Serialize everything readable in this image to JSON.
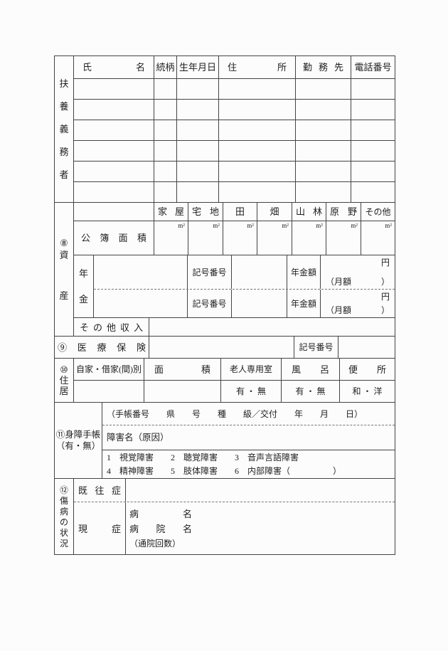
{
  "form": {
    "dependents": {
      "row_label": "扶養義務者",
      "col_name": "氏名",
      "col_relation": "続柄",
      "col_birthdate": "生年月日",
      "col_address": "住所",
      "col_workplace": "勤務先",
      "col_phone": "電話番号"
    },
    "assets": {
      "section_label": "⑧資産",
      "land_types": [
        "家屋",
        "宅地",
        "田",
        "畑",
        "山林",
        "原野",
        "その他"
      ],
      "area_unit": "m²",
      "registered_area_label": "公簿面積",
      "pension_label": "年金",
      "pension_symbol_label": "記号番号",
      "pension_amount_label": "年金額",
      "pension_monthly_open": "（月額",
      "pension_yen": "円",
      "pension_monthly_close": "）",
      "other_income_label": "その他収入"
    },
    "medical": {
      "label": "⑨医療保険",
      "symbol_label": "記号番号"
    },
    "housing": {
      "section_label": "⑩住居",
      "col_ownership": "自家・借家(間)別",
      "col_area": "面積",
      "col_elder_room": "老人専用室",
      "col_bath": "風呂",
      "col_toilet": "便所",
      "val_elder_room": "有 ・ 無",
      "val_bath": "有 ・ 無",
      "val_toilet": "和 ・ 洋"
    },
    "disability": {
      "label_line1": "⑪身障手帳",
      "label_line2": "（有・無）",
      "notebook_line": "（手帳番号　　県　　号　　種　　級／交付　　年　　月　　日）",
      "cause_label": "障害名（原因）",
      "options_line1": "1　視覚障害　　2　聴覚障害　　3　音声言語障害",
      "options_line2": "4　精神障害　　5　肢体障害　　6　内部障害（　　　　　）"
    },
    "illness": {
      "section_label": "⑫傷病の状況",
      "past_label": "既往症",
      "current_label": "現症",
      "disease_label": "病名",
      "hospital_label": "病院名",
      "visits_label": "（通院回数）"
    }
  }
}
